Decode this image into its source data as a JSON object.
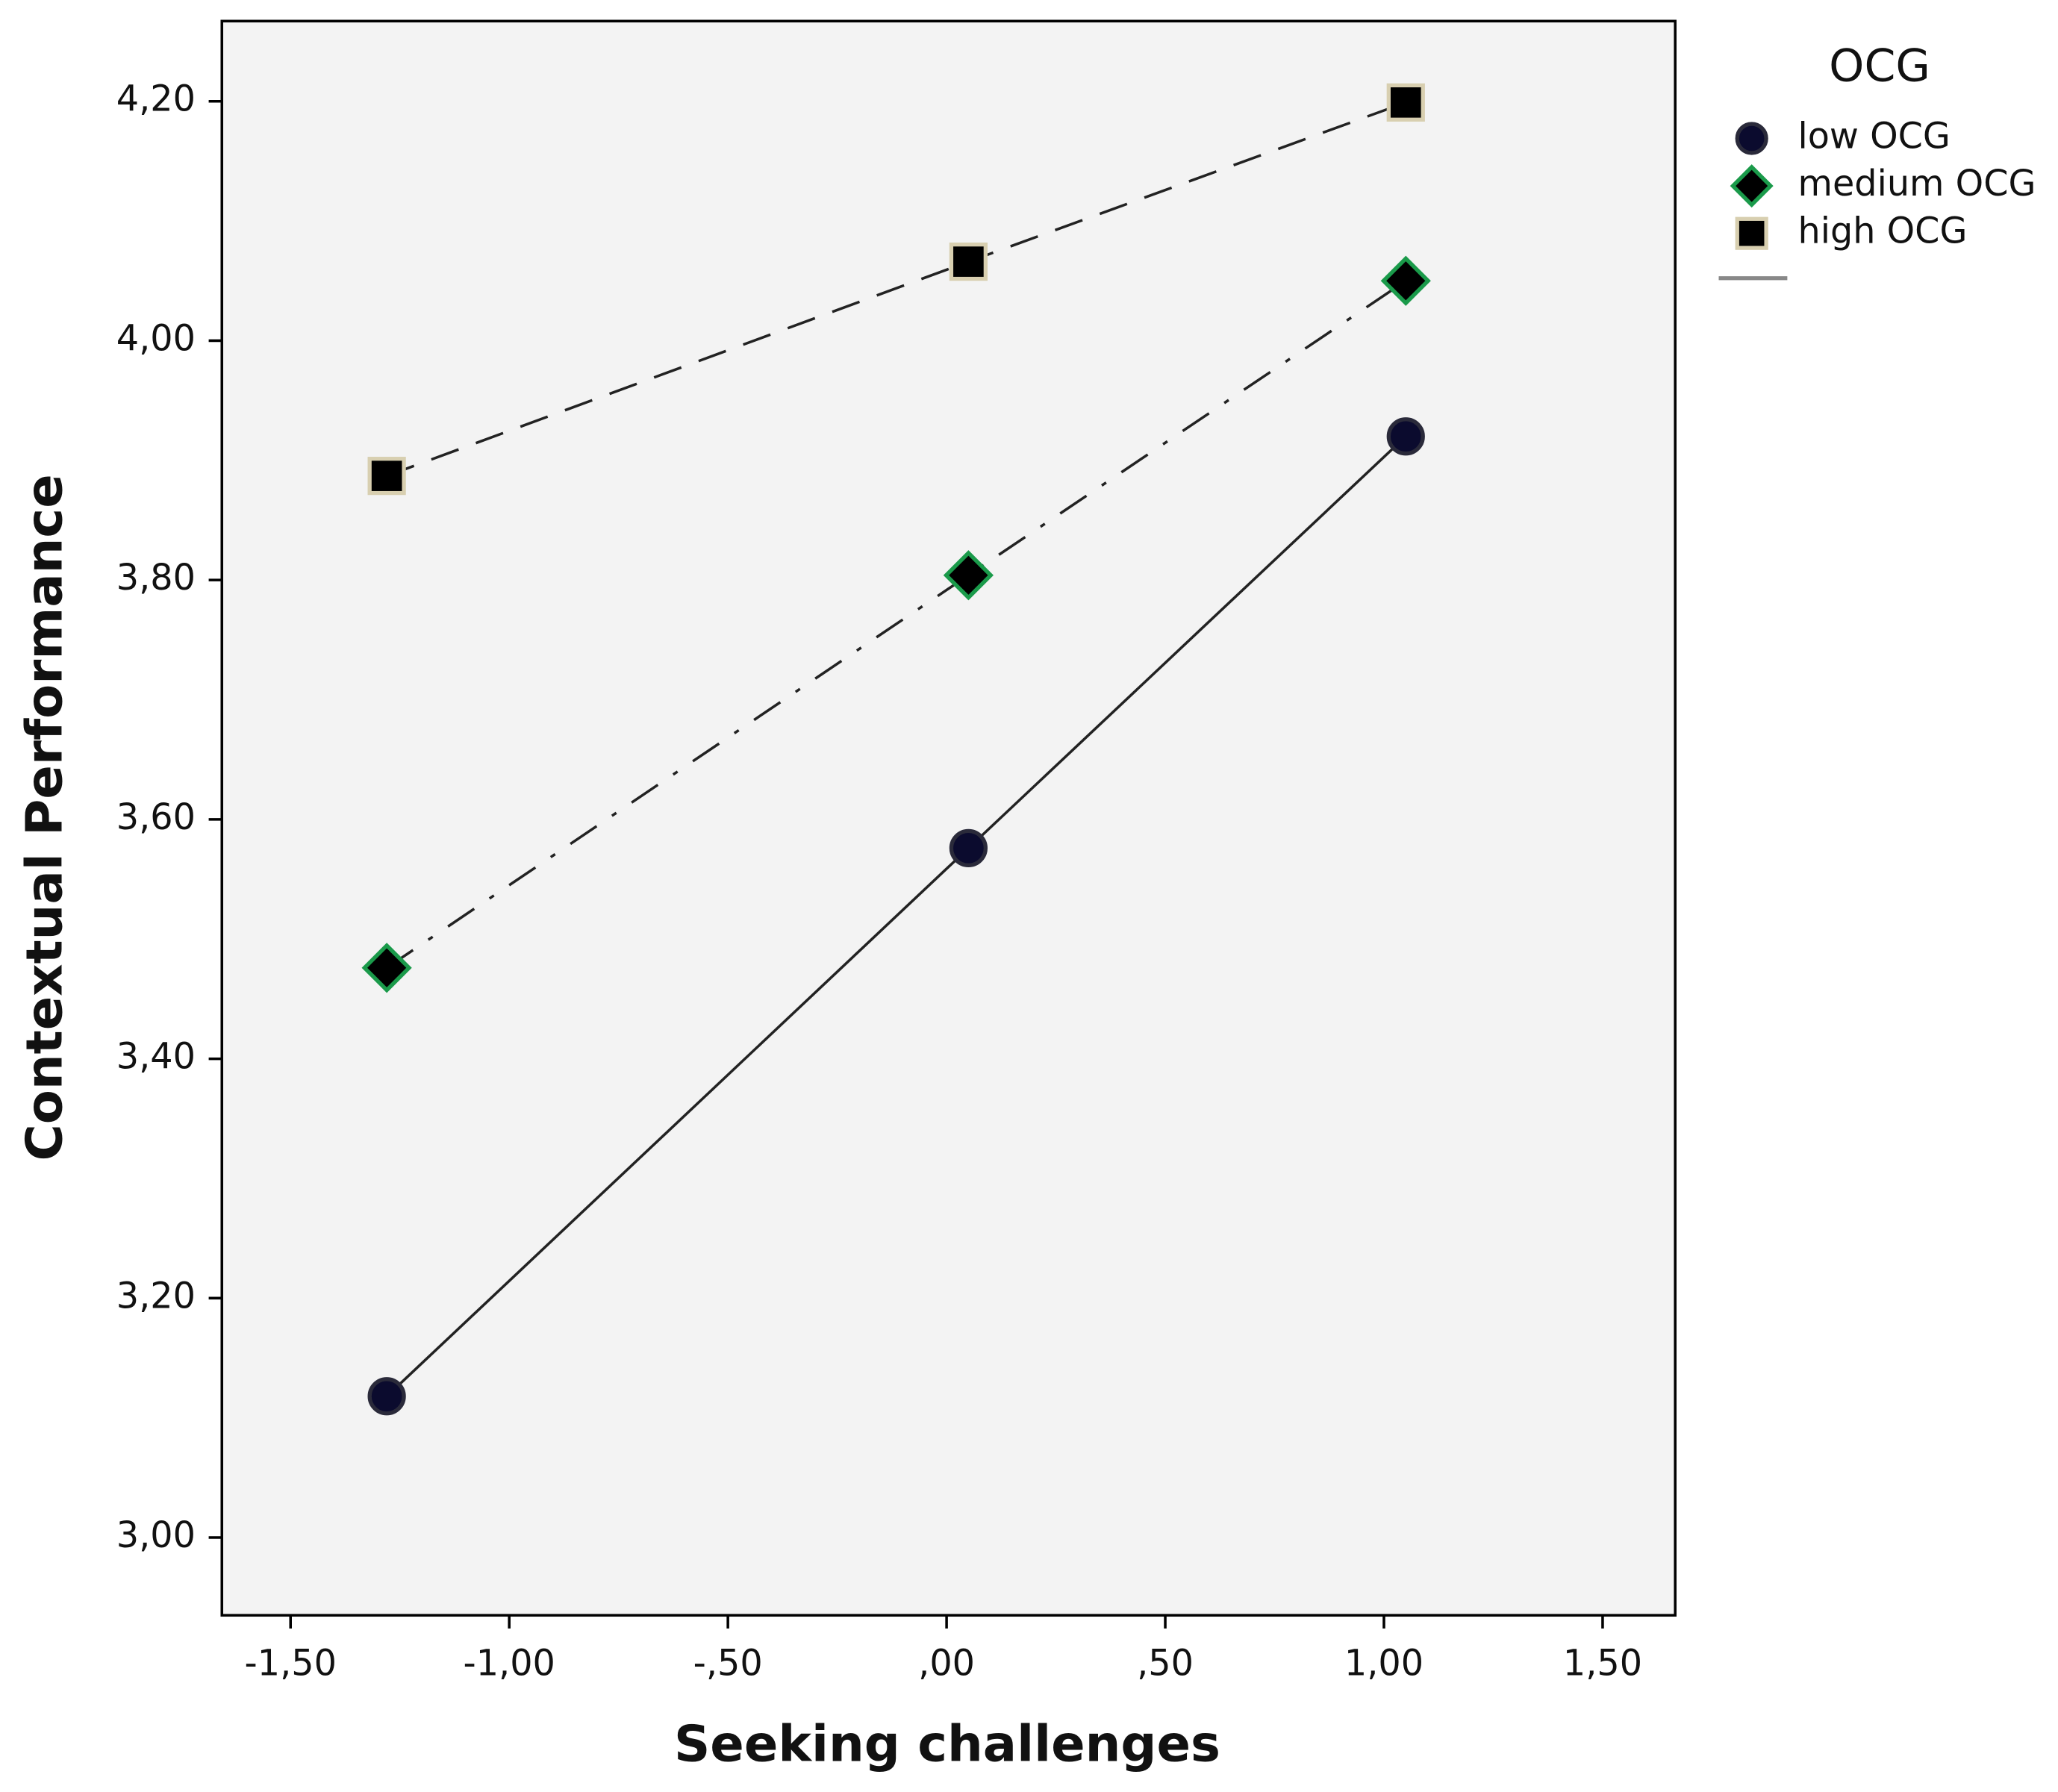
{
  "chart_data": {
    "type": "line",
    "x_label": "Seeking challenges",
    "y_label": "Contextual Performance",
    "legend_title": "OCG",
    "legend": "outside-right",
    "x": [
      -1.28,
      0.05,
      1.05
    ],
    "series": [
      {
        "name": "low OCG",
        "color": "#0b0b2e",
        "edge": "#2a2a3a",
        "marker": "circle",
        "dash": "solid",
        "values": [
          3.118,
          3.576,
          3.92
        ]
      },
      {
        "name": "medium OCG",
        "color": "#000000",
        "edge": "#1a9a4a",
        "marker": "diamond",
        "dash": "dashdot",
        "values": [
          3.476,
          3.804,
          4.05
        ]
      },
      {
        "name": "high OCG",
        "color": "#000000",
        "edge": "#d8cfb0",
        "marker": "square",
        "dash": "dashed",
        "values": [
          3.887,
          4.066,
          4.199
        ]
      }
    ],
    "xlim": [
      -1.657,
      1.666
    ],
    "ylim": [
      2.935,
      4.267
    ],
    "xticks": [
      {
        "value": -1.5,
        "label": "-1,50"
      },
      {
        "value": -1,
        "label": "-1,00"
      },
      {
        "value": -0.5,
        "label": "-,50"
      },
      {
        "value": 0,
        "label": ",00"
      },
      {
        "value": 0.5,
        "label": ",50"
      },
      {
        "value": 1,
        "label": "1,00"
      },
      {
        "value": 1.5,
        "label": "1,50"
      }
    ],
    "yticks": [
      {
        "value": 3,
        "label": "3,00"
      },
      {
        "value": 3.2,
        "label": "3,20"
      },
      {
        "value": 3.4,
        "label": "3,40"
      },
      {
        "value": 3.6,
        "label": "3,60"
      },
      {
        "value": 3.8,
        "label": "3,80"
      },
      {
        "value": 4,
        "label": "4,00"
      },
      {
        "value": 4.2,
        "label": "4,20"
      }
    ],
    "background": "#f3f3f3"
  }
}
